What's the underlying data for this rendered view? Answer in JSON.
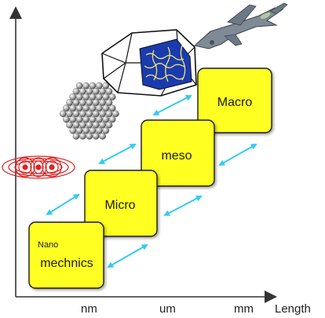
{
  "axis": {
    "x_title": "Length",
    "ticks": [
      "nm",
      "um",
      "mm"
    ]
  },
  "scales": [
    {
      "id": "nano",
      "line1": "Nano",
      "line2": "mechnics"
    },
    {
      "id": "micro",
      "label": "Micro"
    },
    {
      "id": "meso",
      "label": "meso"
    },
    {
      "id": "macro",
      "label": "Macro"
    }
  ],
  "colors": {
    "box_fill": "#ffff22",
    "box_stroke": "#1a1a1a",
    "arrow": "#33ccee",
    "axis": "#333333"
  },
  "illustrations": [
    "atom-orbital-icon",
    "nanoparticle-sphere-icon",
    "polycrystal-mesh-icon",
    "fighter-jet-icon"
  ]
}
